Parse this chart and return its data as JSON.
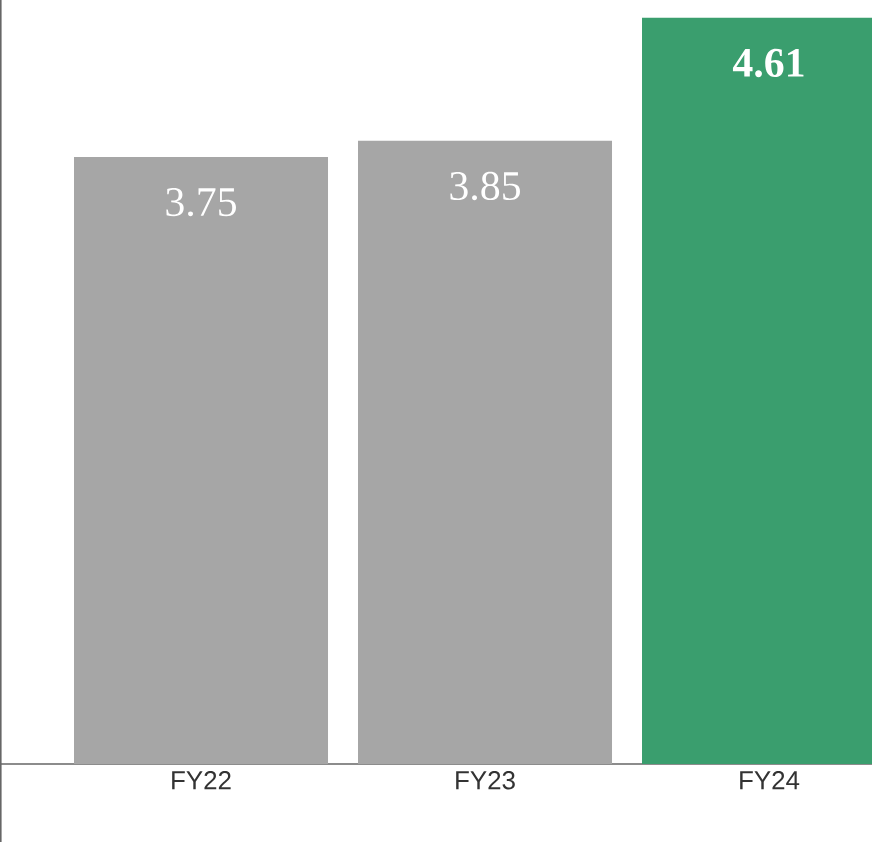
{
  "chart_data": {
    "type": "bar",
    "categories": [
      "FY22",
      "FY23",
      "FY24"
    ],
    "values": [
      3.75,
      3.85,
      4.61
    ],
    "colors": [
      "#a6a6a6",
      "#a6a6a6",
      "#3a9e6e"
    ],
    "ylim": [
      0,
      4.72
    ],
    "data_labels": true,
    "tick_labels": "x"
  }
}
